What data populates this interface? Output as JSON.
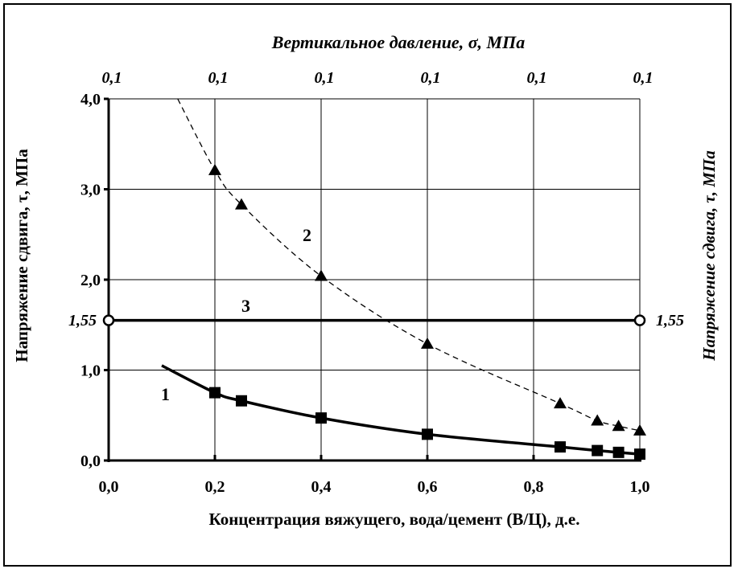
{
  "chart_data": {
    "type": "line",
    "xlabel": "Концентрация вяжущего, вода/цемент (В/Ц), д.е.",
    "ylabel": "Напряжение сдвига, τ, МПа",
    "ylabel_right": "Напряжение сдвига, τ, МПа",
    "x2label": "Вертикальное давление, σ, МПа",
    "xlim": [
      0.0,
      1.0
    ],
    "ylim": [
      0.0,
      4.0
    ],
    "x_ticks": [
      "0,0",
      "0,2",
      "0,4",
      "0,6",
      "0,8",
      "1,0"
    ],
    "y_ticks": [
      "0,0",
      "1,0",
      "2,0",
      "3,0",
      "4,0"
    ],
    "x2_ticks": [
      "0,1",
      "0,1",
      "0,1",
      "0,1",
      "0,1",
      "0,1"
    ],
    "grid": true,
    "series": [
      {
        "name": "1",
        "marker": "square",
        "line": "solid",
        "x": [
          0.2,
          0.25,
          0.4,
          0.6,
          0.85,
          0.92,
          0.96,
          1.0
        ],
        "y": [
          0.75,
          0.66,
          0.47,
          0.29,
          0.15,
          0.11,
          0.09,
          0.07
        ],
        "curve_start": [
          0.1,
          1.05
        ]
      },
      {
        "name": "2",
        "marker": "triangle",
        "line": "dashed",
        "x": [
          0.2,
          0.25,
          0.4,
          0.6,
          0.85,
          0.92,
          0.96,
          1.0
        ],
        "y": [
          3.21,
          2.83,
          2.04,
          1.29,
          0.63,
          0.44,
          0.38,
          0.33
        ],
        "curve_start": [
          0.13,
          4.0
        ]
      },
      {
        "name": "3",
        "marker": "circle",
        "line": "solid",
        "x": [
          0.0,
          1.0
        ],
        "y": [
          1.55,
          1.55
        ]
      }
    ],
    "annotations": {
      "left": "1,55",
      "right": "1,55"
    }
  }
}
